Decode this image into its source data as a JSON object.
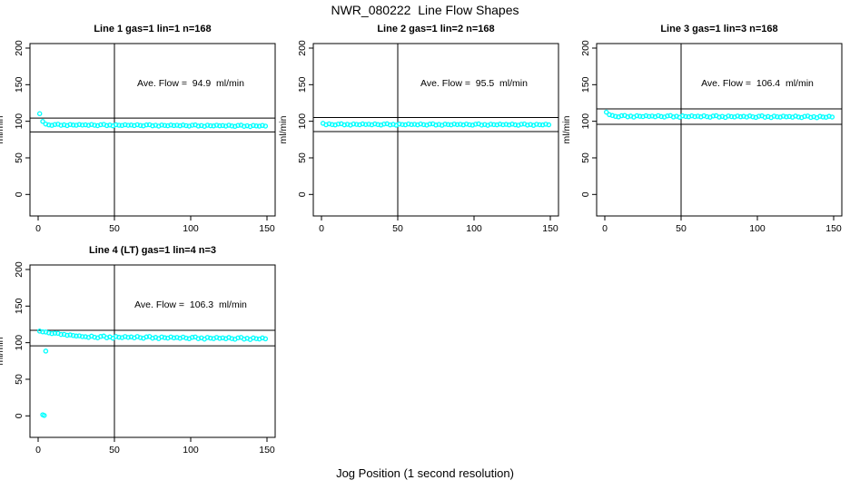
{
  "chart_data": {
    "type": "scatter",
    "title": "NWR_080222  Line Flow Shapes",
    "xlabel": "Jog Position (1 second resolution)",
    "ylabel": "ml/min",
    "layout": "2 rows x 3 cols grid, 4 plots used, legend none, grid off",
    "point_color": "#00FFFF",
    "axis_color": "#000000",
    "background_color": "#FFFFFF",
    "xlim": [
      0,
      150
    ],
    "ylim": [
      0,
      200
    ],
    "xticks": [
      0,
      50,
      100,
      150
    ],
    "yticks": [
      0,
      50,
      100,
      150,
      200
    ],
    "x_start": 1,
    "x_step": 2,
    "plots": [
      {
        "title": "Line 1 gas=1 lin=1 n=168",
        "annotation": "Ave. Flow =  94.9  ml/min",
        "ave_flow": 94.9,
        "n": 168,
        "ylabel": "ml/min",
        "ref_lines_y": [
          85.4,
          104.4
        ],
        "ref_line_x": 50,
        "y_values": [
          110.4,
          99.8,
          96.2,
          95.0,
          94.4,
          95.6,
          96.0,
          94.5,
          95.2,
          94.1,
          95.6,
          94.9,
          94.6,
          95.6,
          94.8,
          95.2,
          94.4,
          95.6,
          94.6,
          94.0,
          95.3,
          95.7,
          94.1,
          94.9,
          93.8,
          95.3,
          94.6,
          94.3,
          95.3,
          94.5,
          94.9,
          94.1,
          95.3,
          94.3,
          93.7,
          95.0,
          95.3,
          93.8,
          94.6,
          93.4,
          94.9,
          94.3,
          93.9,
          94.9,
          94.1,
          94.6,
          93.8,
          94.9,
          94.0,
          93.4,
          94.6,
          95.0,
          93.5,
          94.2,
          93.1,
          94.6,
          93.9,
          93.6,
          94.6,
          93.8,
          94.2,
          93.4,
          94.6,
          93.6,
          93.0,
          94.3,
          94.7,
          93.1,
          93.9,
          92.8,
          94.3,
          93.6,
          93.3,
          94.3,
          93.4
        ]
      },
      {
        "title": "Line 2 gas=1 lin=2 n=168",
        "annotation": "Ave. Flow =  95.5  ml/min",
        "ave_flow": 95.5,
        "n": 168,
        "ylabel": "ml/min",
        "ref_lines_y": [
          86.0,
          105.1
        ],
        "ref_line_x": 50,
        "y_values": [
          97.2,
          95.3,
          96.5,
          95.5,
          95.0,
          96.2,
          96.6,
          95.1,
          95.9,
          94.8,
          96.3,
          95.7,
          95.3,
          96.4,
          95.6,
          96.0,
          95.2,
          96.4,
          95.5,
          94.9,
          96.2,
          96.6,
          95.0,
          95.8,
          94.7,
          96.2,
          95.6,
          95.2,
          96.3,
          95.5,
          95.9,
          95.1,
          96.3,
          95.4,
          94.8,
          96.1,
          96.5,
          94.9,
          95.7,
          94.6,
          96.1,
          95.5,
          95.1,
          96.2,
          95.4,
          95.9,
          95.0,
          96.2,
          95.3,
          94.7,
          96.0,
          96.4,
          94.8,
          95.6,
          94.5,
          96.0,
          95.4,
          95.1,
          96.1,
          95.3,
          95.8,
          95.0,
          96.1,
          95.2,
          94.6,
          95.9,
          96.3,
          94.8,
          95.6,
          94.4,
          95.9,
          95.3,
          95.0,
          96.0,
          95.2
        ]
      },
      {
        "title": "Line 3 gas=1 lin=3 n=168",
        "annotation": "Ave. Flow =  106.4  ml/min",
        "ave_flow": 106.4,
        "n": 168,
        "ylabel": "ml/min",
        "ref_lines_y": [
          95.8,
          117.0
        ],
        "ref_line_x": 50,
        "y_values": [
          112.5,
          109.0,
          107.9,
          106.7,
          106.0,
          107.6,
          108.0,
          106.1,
          107.1,
          105.7,
          107.6,
          106.8,
          106.4,
          107.6,
          106.6,
          107.2,
          106.2,
          107.7,
          106.5,
          105.8,
          107.3,
          107.8,
          105.9,
          106.9,
          105.5,
          107.4,
          106.6,
          106.2,
          107.4,
          106.4,
          107.0,
          106.0,
          107.5,
          106.3,
          105.6,
          107.1,
          107.6,
          105.7,
          106.7,
          105.3,
          107.2,
          106.4,
          105.9,
          107.2,
          106.2,
          106.8,
          105.8,
          107.3,
          106.1,
          105.3,
          106.9,
          107.4,
          105.5,
          106.5,
          105.1,
          107.0,
          106.1,
          105.7,
          107.0,
          106.0,
          106.6,
          105.6,
          107.1,
          105.9,
          105.1,
          106.7,
          107.2,
          105.3,
          106.3,
          104.9,
          106.8,
          105.9,
          105.5,
          106.8,
          105.8
        ]
      },
      {
        "title": "Line 4 (LT) gas=1 lin=4 n=3",
        "annotation": "Ave. Flow =  106.3  ml/min",
        "ave_flow": 106.3,
        "n": 3,
        "ylabel": "ml/min",
        "ref_lines_y": [
          95.7,
          116.9
        ],
        "ref_line_x": 50,
        "y_values": [
          115.8,
          114.8,
          114.6,
          113.4,
          112.5,
          113.0,
          112.8,
          111.2,
          111.4,
          110.1,
          110.7,
          109.8,
          109.1,
          109.4,
          108.3,
          108.2,
          107.2,
          109.0,
          107.5,
          106.6,
          108.5,
          109.1,
          106.7,
          107.9,
          106.2,
          108.4,
          107.4,
          106.9,
          108.4,
          107.2,
          107.9,
          106.6,
          108.4,
          106.9,
          106.0,
          107.9,
          108.4,
          106.1,
          107.3,
          105.6,
          107.8,
          106.8,
          106.3,
          107.8,
          106.5,
          107.2,
          106.0,
          107.7,
          106.3,
          105.4,
          107.3,
          107.8,
          105.5,
          106.6,
          104.9,
          107.2,
          106.2,
          105.6,
          107.2,
          105.9,
          106.6,
          105.4,
          107.1,
          105.6,
          104.7,
          106.6,
          107.2,
          104.9,
          106.0,
          104.3,
          106.5,
          105.5,
          105.0,
          106.5,
          105.3
        ],
        "outliers": [
          [
            5,
            88.5
          ],
          [
            3,
            1.5
          ],
          [
            4,
            0.6
          ]
        ]
      }
    ]
  }
}
